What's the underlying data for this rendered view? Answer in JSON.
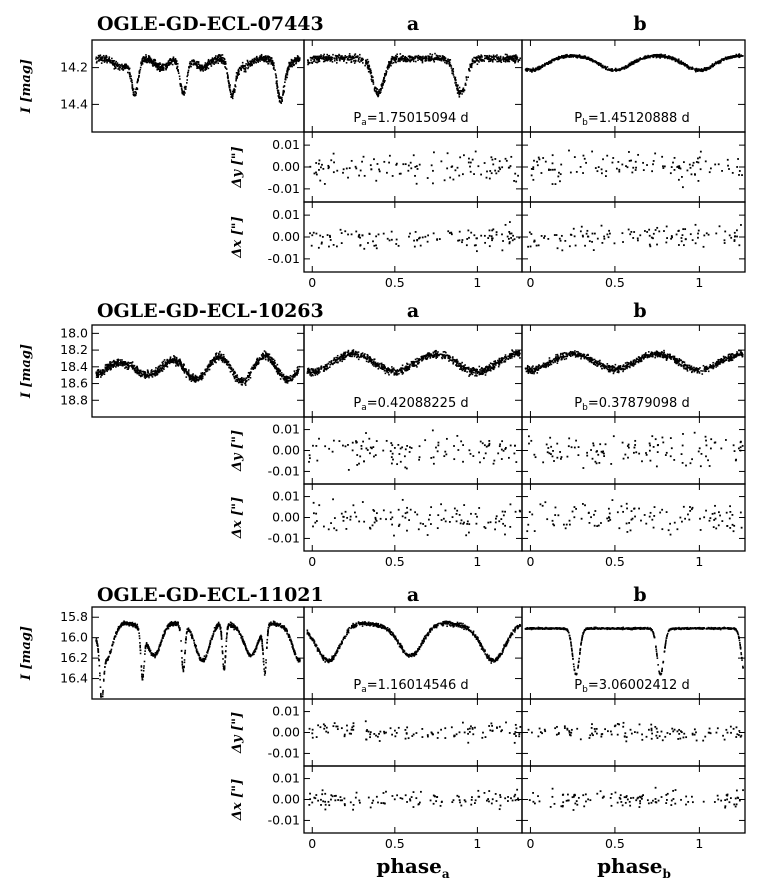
{
  "chart_data": [
    {
      "type": "scatter",
      "title": "OGLE-GD-ECL-07443",
      "ylabel": "I [mag]",
      "label_a": "a",
      "label_b": "b",
      "ylim_mag": [
        14.55,
        14.05
      ],
      "mag_ticks": [
        "14.2",
        "14.4"
      ],
      "mag_tick_values": [
        14.2,
        14.4
      ],
      "period_a": "P_a=1.75015094 d",
      "period_b": "P_b=1.45120888 d",
      "lc_a": {
        "base": 14.15,
        "scatter": 0.04,
        "primary": {
          "phase": 0.4,
          "depth": 0.19,
          "width": 0.035
        },
        "secondary": {
          "phase": 0.9,
          "depth": 0.19,
          "width": 0.035
        }
      },
      "lc_b": {
        "base": 14.15,
        "scatter": 0.015,
        "primary": {
          "phase": 0.5,
          "depth": 0.05,
          "width": 0.08
        },
        "secondary": {
          "phase": 0.0,
          "depth": 0.05,
          "width": 0.08
        },
        "ellip": 0.05
      },
      "shift_scatter": [
        0.007,
        0.005
      ]
    },
    {
      "type": "scatter",
      "title": "OGLE-GD-ECL-10263",
      "ylabel": "I [mag]",
      "label_a": "a",
      "label_b": "b",
      "ylim_mag": [
        19.0,
        17.9
      ],
      "mag_ticks": [
        "18.0",
        "18.2",
        "18.4",
        "18.6",
        "18.8"
      ],
      "mag_tick_values": [
        18.0,
        18.2,
        18.4,
        18.6,
        18.8
      ],
      "period_a": "P_a=0.42088225 d",
      "period_b": "P_b=0.37879098 d",
      "lc_a": {
        "base": 18.27,
        "scatter": 0.09,
        "primary": {
          "phase": 0.0,
          "depth": 0.14,
          "width": 0.12
        },
        "secondary": {
          "phase": 0.5,
          "depth": 0.13,
          "width": 0.12
        },
        "ellip": 0.18
      },
      "lc_b": {
        "base": 18.27,
        "scatter": 0.08,
        "primary": {
          "phase": 0.0,
          "depth": 0.12,
          "width": 0.12
        },
        "secondary": {
          "phase": 0.5,
          "depth": 0.11,
          "width": 0.12
        },
        "ellip": 0.16
      },
      "shift_scatter": [
        0.008,
        0.008
      ]
    },
    {
      "type": "scatter",
      "title": "OGLE-GD-ECL-11021",
      "ylabel": "I [mag]",
      "label_a": "a",
      "label_b": "b",
      "ylim_mag": [
        16.6,
        15.7
      ],
      "mag_ticks": [
        "15.8",
        "16.0",
        "16.2",
        "16.4"
      ],
      "mag_tick_values": [
        15.8,
        16.0,
        16.2,
        16.4
      ],
      "period_a": "P_a=1.16014546 d",
      "period_b": "P_b=3.06002412 d",
      "lc_a": {
        "base": 15.87,
        "scatter": 0.04,
        "primary": {
          "phase": 0.1,
          "depth": 0.35,
          "width": 0.07
        },
        "secondary": {
          "phase": 0.6,
          "depth": 0.3,
          "width": 0.07
        },
        "ellip": 0.06
      },
      "lc_b": {
        "base": 15.91,
        "scatter": 0.015,
        "primary": {
          "phase": 0.27,
          "depth": 0.45,
          "width": 0.02
        },
        "secondary": {
          "phase": 0.77,
          "depth": 0.45,
          "width": 0.02
        }
      },
      "shift_scatter": [
        0.004,
        0.004
      ]
    }
  ],
  "shift_axes": {
    "dy_label": "Δy [\"]",
    "dx_label": "Δx [\"]",
    "ticks": [
      "0.01",
      "0.00",
      "-0.01"
    ],
    "tick_values": [
      0.01,
      0.0,
      -0.01
    ],
    "ylim": [
      -0.016,
      0.016
    ]
  },
  "phase_axis": {
    "ticks": [
      "0",
      "0.5",
      "1"
    ],
    "tick_values": [
      0,
      0.5,
      1
    ],
    "xlim": [
      -0.05,
      1.27
    ],
    "xlabel_a": "phase",
    "xlabel_a_sub": "a",
    "xlabel_b": "phase",
    "xlabel_b_sub": "b"
  },
  "colors": {
    "ink": "#000000",
    "background": "#ffffff"
  }
}
